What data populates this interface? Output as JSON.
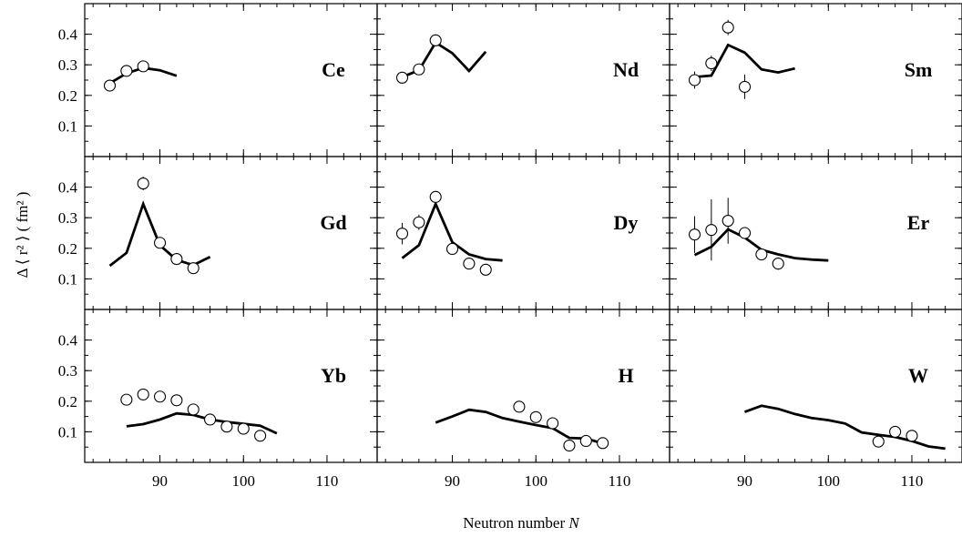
{
  "chart_data": {
    "type": "scatter",
    "xlabel_text": "Neutron number ",
    "xlabel_var": "N",
    "ylabel": "Δ ⟨ r² ⟩ ( fm² )",
    "x_ticks": [
      90,
      100,
      110
    ],
    "y_ticks": [
      0.1,
      0.2,
      0.3,
      0.4
    ],
    "xlim": [
      81,
      116
    ],
    "ylim": [
      0.0,
      0.5
    ],
    "panels": [
      {
        "element": "Ce",
        "theory": [
          [
            84,
            0.24
          ],
          [
            86,
            0.272
          ],
          [
            88,
            0.29
          ],
          [
            90,
            0.282
          ],
          [
            92,
            0.264
          ]
        ],
        "data": [
          [
            84,
            0.232,
            0
          ],
          [
            86,
            0.28,
            0
          ],
          [
            88,
            0.295,
            0
          ]
        ]
      },
      {
        "element": "Nd",
        "theory": [
          [
            84,
            0.26
          ],
          [
            86,
            0.282
          ],
          [
            88,
            0.373
          ],
          [
            90,
            0.338
          ],
          [
            92,
            0.28
          ],
          [
            94,
            0.343
          ]
        ],
        "data": [
          [
            84,
            0.258,
            0
          ],
          [
            86,
            0.285,
            0
          ],
          [
            88,
            0.38,
            0
          ]
        ]
      },
      {
        "element": "Sm",
        "theory": [
          [
            84,
            0.26
          ],
          [
            86,
            0.265
          ],
          [
            88,
            0.365
          ],
          [
            90,
            0.34
          ],
          [
            92,
            0.285
          ],
          [
            94,
            0.275
          ],
          [
            96,
            0.288
          ]
        ],
        "data": [
          [
            84,
            0.25,
            0.028
          ],
          [
            86,
            0.305,
            0.025
          ],
          [
            88,
            0.422,
            0.025
          ],
          [
            90,
            0.228,
            0.04
          ]
        ]
      },
      {
        "element": "Gd",
        "theory": [
          [
            84,
            0.143
          ],
          [
            86,
            0.185
          ],
          [
            88,
            0.345
          ],
          [
            90,
            0.21
          ],
          [
            92,
            0.162
          ],
          [
            94,
            0.145
          ],
          [
            96,
            0.172
          ]
        ],
        "data": [
          [
            88,
            0.412,
            0.022
          ],
          [
            90,
            0.218,
            0
          ],
          [
            92,
            0.165,
            0
          ],
          [
            94,
            0.135,
            0
          ]
        ]
      },
      {
        "element": "Dy",
        "theory": [
          [
            84,
            0.168
          ],
          [
            86,
            0.21
          ],
          [
            88,
            0.345
          ],
          [
            90,
            0.22
          ],
          [
            92,
            0.18
          ],
          [
            94,
            0.165
          ],
          [
            96,
            0.16
          ]
        ],
        "data": [
          [
            84,
            0.248,
            0.035
          ],
          [
            86,
            0.285,
            0.025
          ],
          [
            88,
            0.368,
            0
          ],
          [
            90,
            0.198,
            0
          ],
          [
            92,
            0.15,
            0
          ],
          [
            94,
            0.13,
            0
          ]
        ]
      },
      {
        "element": "Er",
        "theory": [
          [
            84,
            0.178
          ],
          [
            86,
            0.205
          ],
          [
            88,
            0.262
          ],
          [
            90,
            0.235
          ],
          [
            92,
            0.195
          ],
          [
            94,
            0.18
          ],
          [
            96,
            0.168
          ],
          [
            98,
            0.163
          ],
          [
            100,
            0.16
          ]
        ],
        "data": [
          [
            84,
            0.245,
            0.06
          ],
          [
            86,
            0.26,
            0.1
          ],
          [
            88,
            0.29,
            0.075
          ],
          [
            90,
            0.25,
            0
          ],
          [
            92,
            0.18,
            0
          ],
          [
            94,
            0.15,
            0.02
          ]
        ]
      },
      {
        "element": "Yb",
        "theory": [
          [
            86,
            0.118
          ],
          [
            88,
            0.125
          ],
          [
            90,
            0.14
          ],
          [
            92,
            0.16
          ],
          [
            94,
            0.155
          ],
          [
            96,
            0.14
          ],
          [
            98,
            0.132
          ],
          [
            100,
            0.126
          ],
          [
            102,
            0.12
          ],
          [
            104,
            0.095
          ]
        ],
        "data": [
          [
            86,
            0.205,
            0
          ],
          [
            88,
            0.222,
            0
          ],
          [
            90,
            0.215,
            0
          ],
          [
            92,
            0.203,
            0
          ],
          [
            94,
            0.173,
            0
          ],
          [
            96,
            0.14,
            0
          ],
          [
            98,
            0.117,
            0
          ],
          [
            100,
            0.11,
            0
          ],
          [
            102,
            0.087,
            0
          ]
        ]
      },
      {
        "element": "H",
        "theory": [
          [
            88,
            0.13
          ],
          [
            90,
            0.15
          ],
          [
            92,
            0.172
          ],
          [
            94,
            0.165
          ],
          [
            96,
            0.145
          ],
          [
            98,
            0.133
          ],
          [
            100,
            0.122
          ],
          [
            102,
            0.112
          ],
          [
            104,
            0.08
          ],
          [
            106,
            0.078
          ],
          [
            108,
            0.062
          ]
        ],
        "data": [
          [
            98,
            0.182,
            0
          ],
          [
            100,
            0.148,
            0
          ],
          [
            102,
            0.128,
            0
          ],
          [
            104,
            0.055,
            0
          ],
          [
            106,
            0.07,
            0
          ],
          [
            108,
            0.063,
            0
          ]
        ]
      },
      {
        "element": "W",
        "theory": [
          [
            90,
            0.165
          ],
          [
            92,
            0.185
          ],
          [
            94,
            0.175
          ],
          [
            96,
            0.158
          ],
          [
            98,
            0.145
          ],
          [
            100,
            0.138
          ],
          [
            102,
            0.127
          ],
          [
            104,
            0.098
          ],
          [
            106,
            0.09
          ],
          [
            108,
            0.083
          ],
          [
            110,
            0.07
          ],
          [
            112,
            0.052
          ],
          [
            114,
            0.045
          ]
        ],
        "data": [
          [
            106,
            0.068,
            0
          ],
          [
            108,
            0.1,
            0
          ],
          [
            110,
            0.087,
            0
          ]
        ]
      }
    ]
  }
}
